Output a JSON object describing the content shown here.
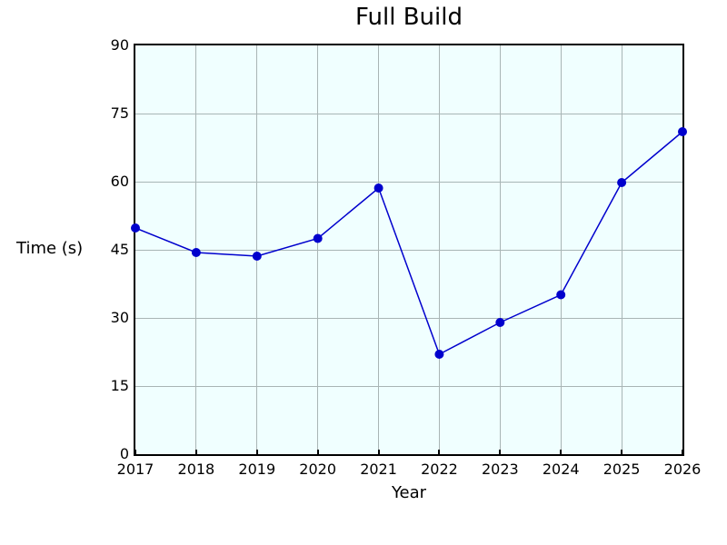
{
  "chart_data": {
    "type": "line",
    "title": "Full Build",
    "xlabel": "Year",
    "ylabel": "Time (s)",
    "x": [
      2017,
      2018,
      2019,
      2020,
      2021,
      2022,
      2023,
      2024,
      2025,
      2026
    ],
    "series": [
      {
        "name": "Full Build",
        "values": [
          49.8,
          44.4,
          43.6,
          47.5,
          58.6,
          22.0,
          29.0,
          35.1,
          59.8,
          71.0
        ]
      }
    ],
    "xlim": [
      2017,
      2026
    ],
    "ylim": [
      0,
      90
    ],
    "yticks": [
      0,
      15,
      30,
      45,
      60,
      75,
      90
    ],
    "xticks": [
      2017,
      2018,
      2019,
      2020,
      2021,
      2022,
      2023,
      2024,
      2025,
      2026
    ],
    "grid": true,
    "legend_position": "none",
    "marker": "circle",
    "colors": {
      "line": "#0000cd",
      "marker": "#0000cd",
      "plot_background": "#f0ffff",
      "figure_background": "#ffffff",
      "grid": "#a9b5b5",
      "axis": "#000000",
      "text": "#000000"
    }
  }
}
